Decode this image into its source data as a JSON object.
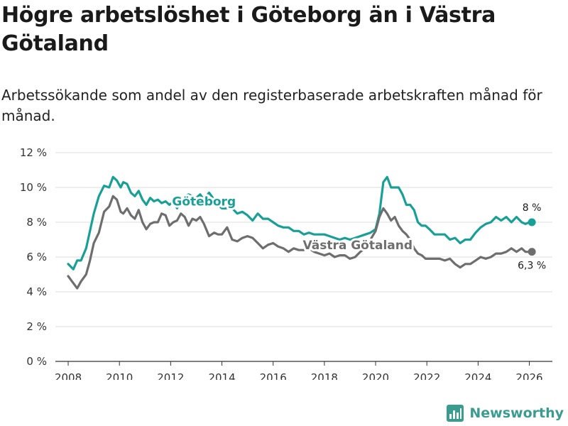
{
  "title": "Högre arbetslöshet i Göteborg än i Västra Götaland",
  "subtitle": "Arbetssökande som andel av den registerbaserade arbetskraften månad för månad.",
  "brand": {
    "name": "Newsworthy",
    "icon": "newsworthy-logo-icon"
  },
  "colors": {
    "goteborg": "#18a096",
    "vg": "#6e6e6e",
    "grid": "#dddddd",
    "axis": "#333333"
  },
  "chart_data": {
    "type": "line",
    "title": "Högre arbetslöshet i Göteborg än i Västra Götaland",
    "xlabel": "",
    "ylabel": "",
    "xlim": [
      2007.5,
      2026.9
    ],
    "ylim": [
      0,
      12
    ],
    "y_ticks": [
      0,
      2,
      4,
      6,
      8,
      10,
      12
    ],
    "y_tick_labels": [
      "0 %",
      "2 %",
      "4 %",
      "6 %",
      "8 %",
      "10 %",
      "12 %"
    ],
    "x_ticks": [
      2008,
      2010,
      2012,
      2014,
      2016,
      2018,
      2020,
      2022,
      2024,
      2026
    ],
    "x_tick_labels": [
      "2008",
      "2010",
      "2012",
      "2014",
      "2016",
      "2018",
      "2020",
      "2022",
      "2024",
      "2026"
    ],
    "grid": true,
    "series": [
      {
        "name": "Göteborg",
        "color": "#18a096",
        "end_label": "8 %",
        "x": [
          2008.0,
          2008.2,
          2008.35,
          2008.5,
          2008.7,
          2008.85,
          2009.0,
          2009.2,
          2009.4,
          2009.6,
          2009.75,
          2009.9,
          2010.05,
          2010.15,
          2010.3,
          2010.45,
          2010.6,
          2010.75,
          2010.9,
          2011.05,
          2011.2,
          2011.35,
          2011.5,
          2011.65,
          2011.8,
          2011.95,
          2012.1,
          2012.25,
          2012.4,
          2012.55,
          2012.7,
          2012.85,
          2013.0,
          2013.15,
          2013.3,
          2013.5,
          2013.7,
          2013.85,
          2014.0,
          2014.2,
          2014.4,
          2014.6,
          2014.8,
          2015.0,
          2015.2,
          2015.4,
          2015.6,
          2015.8,
          2016.0,
          2016.2,
          2016.4,
          2016.6,
          2016.8,
          2017.0,
          2017.2,
          2017.4,
          2017.6,
          2017.8,
          2018.0,
          2018.2,
          2018.4,
          2018.6,
          2018.8,
          2019.0,
          2019.2,
          2019.4,
          2019.6,
          2019.8,
          2020.0,
          2020.15,
          2020.3,
          2020.45,
          2020.6,
          2020.75,
          2020.9,
          2021.05,
          2021.2,
          2021.35,
          2021.5,
          2021.65,
          2021.8,
          2021.95,
          2022.1,
          2022.3,
          2022.5,
          2022.7,
          2022.9,
          2023.1,
          2023.3,
          2023.5,
          2023.7,
          2023.9,
          2024.1,
          2024.3,
          2024.5,
          2024.7,
          2024.9,
          2025.1,
          2025.3,
          2025.5,
          2025.7,
          2025.85,
          2026.0,
          2026.1
        ],
        "values": [
          5.6,
          5.3,
          5.8,
          5.8,
          6.5,
          7.5,
          8.5,
          9.5,
          10.1,
          10.0,
          10.6,
          10.4,
          10.0,
          10.3,
          10.2,
          9.7,
          9.5,
          9.8,
          9.3,
          9.0,
          9.4,
          9.2,
          9.3,
          9.1,
          9.2,
          9.0,
          9.2,
          8.8,
          9.3,
          9.5,
          9.6,
          9.5,
          9.4,
          9.6,
          9.3,
          9.7,
          9.3,
          9.0,
          8.8,
          8.8,
          8.8,
          8.5,
          8.6,
          8.4,
          8.1,
          8.5,
          8.2,
          8.2,
          8.0,
          7.8,
          7.7,
          7.7,
          7.5,
          7.5,
          7.3,
          7.4,
          7.3,
          7.3,
          7.3,
          7.2,
          7.1,
          7.0,
          7.1,
          7.0,
          7.1,
          7.2,
          7.3,
          7.4,
          7.6,
          8.5,
          10.3,
          10.6,
          10.0,
          10.0,
          10.0,
          9.6,
          9.0,
          9.0,
          8.7,
          8.0,
          7.8,
          7.8,
          7.6,
          7.3,
          7.3,
          7.3,
          7.0,
          7.1,
          6.8,
          7.0,
          7.0,
          7.4,
          7.7,
          7.9,
          8.0,
          8.3,
          8.1,
          8.3,
          8.0,
          8.3,
          8.0,
          7.9,
          8.0,
          8.0
        ]
      },
      {
        "name": "Västra Götaland",
        "color": "#6e6e6e",
        "end_label": "6,3 %",
        "x": [
          2008.0,
          2008.2,
          2008.35,
          2008.5,
          2008.7,
          2008.85,
          2009.0,
          2009.2,
          2009.4,
          2009.6,
          2009.75,
          2009.9,
          2010.05,
          2010.15,
          2010.3,
          2010.45,
          2010.6,
          2010.75,
          2010.9,
          2011.05,
          2011.2,
          2011.35,
          2011.5,
          2011.65,
          2011.8,
          2011.95,
          2012.1,
          2012.25,
          2012.4,
          2012.55,
          2012.7,
          2012.85,
          2013.0,
          2013.15,
          2013.3,
          2013.5,
          2013.7,
          2013.85,
          2014.0,
          2014.2,
          2014.4,
          2014.6,
          2014.8,
          2015.0,
          2015.2,
          2015.4,
          2015.6,
          2015.8,
          2016.0,
          2016.2,
          2016.4,
          2016.6,
          2016.8,
          2017.0,
          2017.2,
          2017.4,
          2017.6,
          2017.8,
          2018.0,
          2018.2,
          2018.4,
          2018.6,
          2018.8,
          2019.0,
          2019.2,
          2019.4,
          2019.6,
          2019.8,
          2020.0,
          2020.15,
          2020.3,
          2020.45,
          2020.6,
          2020.75,
          2020.9,
          2021.05,
          2021.2,
          2021.35,
          2021.5,
          2021.65,
          2021.8,
          2021.95,
          2022.1,
          2022.3,
          2022.5,
          2022.7,
          2022.9,
          2023.1,
          2023.3,
          2023.5,
          2023.7,
          2023.9,
          2024.1,
          2024.3,
          2024.5,
          2024.7,
          2024.9,
          2025.1,
          2025.3,
          2025.5,
          2025.7,
          2025.85,
          2026.0,
          2026.1
        ],
        "values": [
          4.9,
          4.5,
          4.2,
          4.6,
          5.0,
          5.8,
          6.8,
          7.4,
          8.6,
          8.9,
          9.5,
          9.3,
          8.6,
          8.5,
          8.8,
          8.4,
          8.2,
          8.7,
          8.0,
          7.6,
          7.9,
          8.0,
          8.0,
          8.5,
          8.4,
          7.8,
          8.0,
          8.1,
          8.5,
          8.3,
          7.8,
          8.2,
          8.1,
          8.3,
          7.9,
          7.2,
          7.4,
          7.3,
          7.3,
          7.7,
          7.0,
          6.9,
          7.1,
          7.2,
          7.1,
          6.8,
          6.5,
          6.7,
          6.8,
          6.6,
          6.5,
          6.3,
          6.5,
          6.4,
          6.4,
          6.5,
          6.3,
          6.2,
          6.1,
          6.2,
          6.0,
          6.1,
          6.1,
          5.9,
          6.0,
          6.3,
          6.5,
          7.0,
          7.5,
          8.3,
          8.8,
          8.5,
          8.1,
          8.3,
          7.8,
          7.5,
          7.3,
          7.0,
          6.5,
          6.2,
          6.1,
          5.9,
          5.9,
          5.9,
          5.9,
          5.8,
          5.9,
          5.6,
          5.4,
          5.6,
          5.6,
          5.8,
          6.0,
          5.9,
          6.0,
          6.2,
          6.2,
          6.3,
          6.5,
          6.3,
          6.5,
          6.3,
          6.3,
          6.3
        ]
      }
    ],
    "annotations": [
      {
        "text": "Göteborg",
        "series": "Göteborg",
        "x": 2013.3,
        "y": 9.2
      },
      {
        "text": "Västra Götaland",
        "series": "Västra Götaland",
        "x": 2019.3,
        "y": 6.7
      }
    ]
  }
}
